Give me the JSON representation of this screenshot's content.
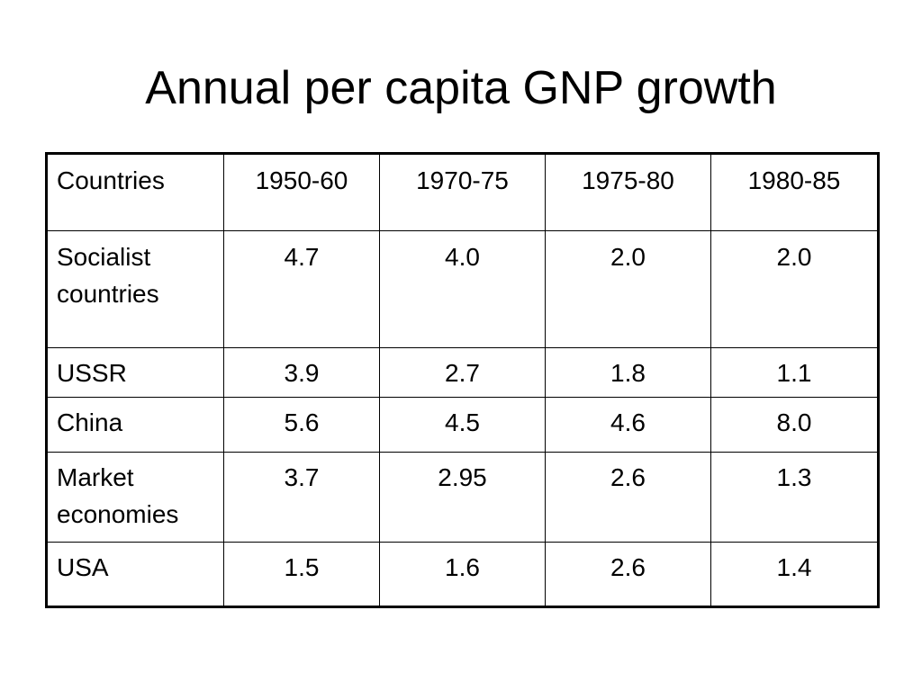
{
  "slide": {
    "title": "Annual per capita GNP growth"
  },
  "table": {
    "headers": [
      "Countries",
      "1950-60",
      "1970-75",
      "1975-80",
      "1980-85"
    ],
    "rows": [
      {
        "label_line1": "Socialist",
        "label_line2": "countries",
        "values": [
          "4.7",
          "4.0",
          "2.0",
          "2.0"
        ]
      },
      {
        "label_line1": "USSR",
        "label_line2": "",
        "values": [
          "3.9",
          "2.7",
          "1.8",
          "1.1"
        ]
      },
      {
        "label_line1": "China",
        "label_line2": "",
        "values": [
          "5.6",
          "4.5",
          "4.6",
          "8.0"
        ]
      },
      {
        "label_line1": "Market",
        "label_line2": "economies",
        "values": [
          "3.7",
          "2.95",
          "2.6",
          "1.3"
        ]
      },
      {
        "label_line1": "USA",
        "label_line2": "",
        "values": [
          "1.5",
          "1.6",
          "2.6",
          "1.4"
        ]
      }
    ]
  }
}
